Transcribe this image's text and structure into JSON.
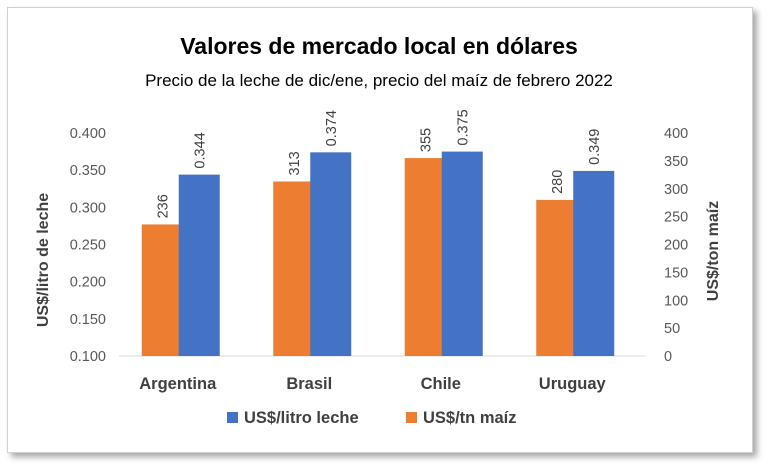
{
  "chart_data": {
    "type": "bar",
    "title": "Valores de mercado local en dólares",
    "subtitle": "Precio de la leche de dic/ene, precio del maíz de febrero 2022",
    "categories": [
      "Argentina",
      "Brasil",
      "Chile",
      "Uruguay"
    ],
    "ylabel": "US$/litro de leche",
    "y2label": "US$/ton maíz",
    "ylim": [
      0.1,
      0.4
    ],
    "y2lim": [
      0,
      400
    ],
    "yticks": [
      "0.100",
      "0.150",
      "0.200",
      "0.250",
      "0.300",
      "0.350",
      "0.400"
    ],
    "y2ticks": [
      "0",
      "50",
      "100",
      "150",
      "200",
      "250",
      "300",
      "350",
      "400"
    ],
    "series": [
      {
        "name": "US$/litro leche",
        "axis": "left",
        "color": "#4472C4",
        "values": [
          0.344,
          0.374,
          0.375,
          0.349
        ],
        "labels": [
          "0.344",
          "0.374",
          "0.375",
          "0.349"
        ]
      },
      {
        "name": "US$/tn maíz",
        "axis": "right",
        "color": "#ED7D31",
        "values": [
          236,
          313,
          355,
          280
        ],
        "labels": [
          "236",
          "313",
          "355",
          "280"
        ]
      }
    ],
    "grid": false,
    "legend_position": "bottom"
  }
}
